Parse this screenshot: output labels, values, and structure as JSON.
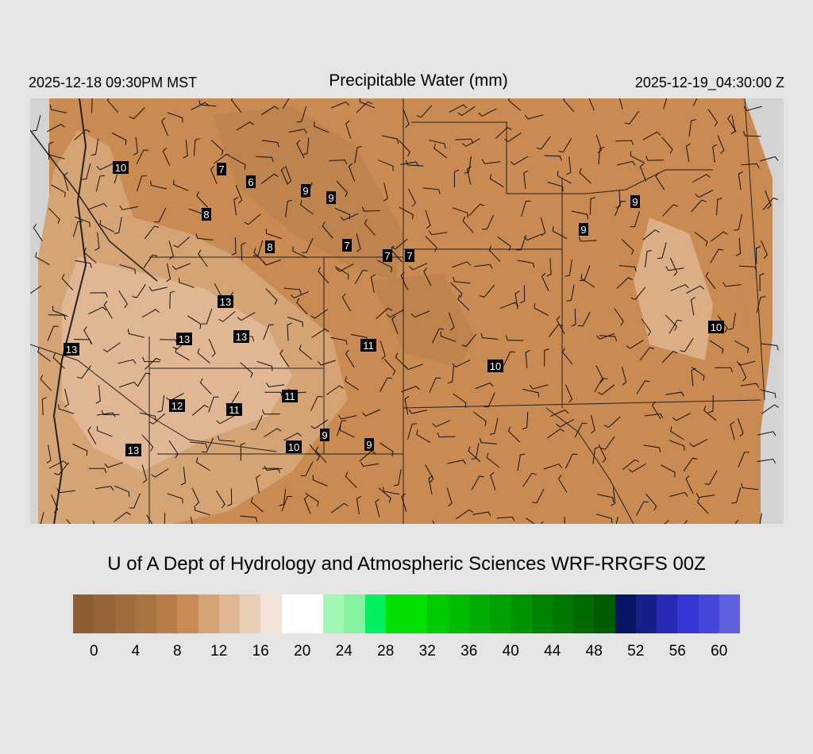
{
  "header": {
    "local_time": "2025-12-18 09:30PM MST",
    "title": "Precipitable Water (mm)",
    "valid_time": "2025-12-19_04:30:00 Z"
  },
  "credit": "U of A Dept of Hydrology and Atmospheric Sciences WRF-RRGFS 00Z",
  "colorbar": {
    "colors": [
      "#8b5e34",
      "#946539",
      "#9e6c3d",
      "#a87442",
      "#b67d48",
      "#c98b52",
      "#d5a474",
      "#e0b693",
      "#e9cfb5",
      "#f3e3d7",
      "#ffffff",
      "#ffffff",
      "#a0f8b4",
      "#86f29e",
      "#00f060",
      "#00e000",
      "#00e000",
      "#00cc00",
      "#00bb00",
      "#00ad00",
      "#00a200",
      "#009400",
      "#008400",
      "#007800",
      "#006b00",
      "#005c00",
      "#0a1464",
      "#16208a",
      "#2828b4",
      "#3636d4",
      "#4646dc",
      "#6060e0"
    ],
    "ticks": [
      "0",
      "4",
      "8",
      "12",
      "16",
      "20",
      "24",
      "28",
      "32",
      "36",
      "40",
      "44",
      "48",
      "52",
      "56",
      "60"
    ]
  },
  "map": {
    "background_color": "#c98b52",
    "station_values": [
      "10",
      "7",
      "6",
      "9",
      "9",
      "8",
      "8",
      "7",
      "7",
      "7",
      "13",
      "13",
      "13",
      "13",
      "11",
      "10",
      "11",
      "12",
      "11",
      "9",
      "9",
      "10",
      "13",
      "9",
      "9",
      "10"
    ]
  }
}
